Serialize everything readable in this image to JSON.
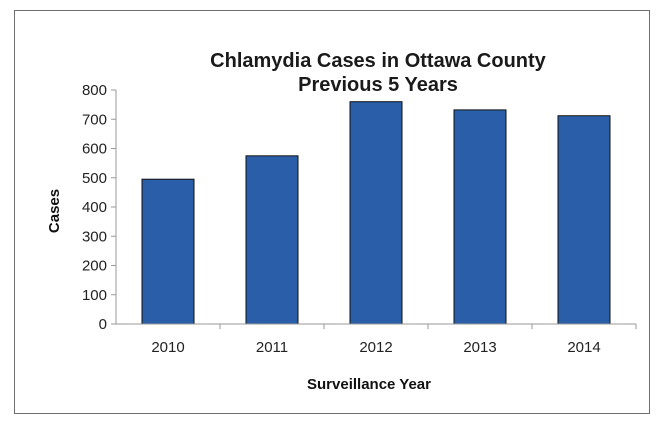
{
  "chart_data": {
    "type": "bar",
    "title": "Chlamydia Cases in Ottawa County",
    "subtitle": "Previous 5 Years",
    "xlabel": "Surveillance Year",
    "ylabel": "Cases",
    "categories": [
      "2010",
      "2011",
      "2012",
      "2013",
      "2014"
    ],
    "values": [
      495,
      575,
      760,
      732,
      712
    ],
    "ylim": [
      0,
      800
    ],
    "yticks": [
      0,
      100,
      200,
      300,
      400,
      500,
      600,
      700,
      800
    ],
    "grid": false,
    "legend": "none",
    "bar_color": "#2a5ea8",
    "bar_edge_color": "#111111"
  }
}
